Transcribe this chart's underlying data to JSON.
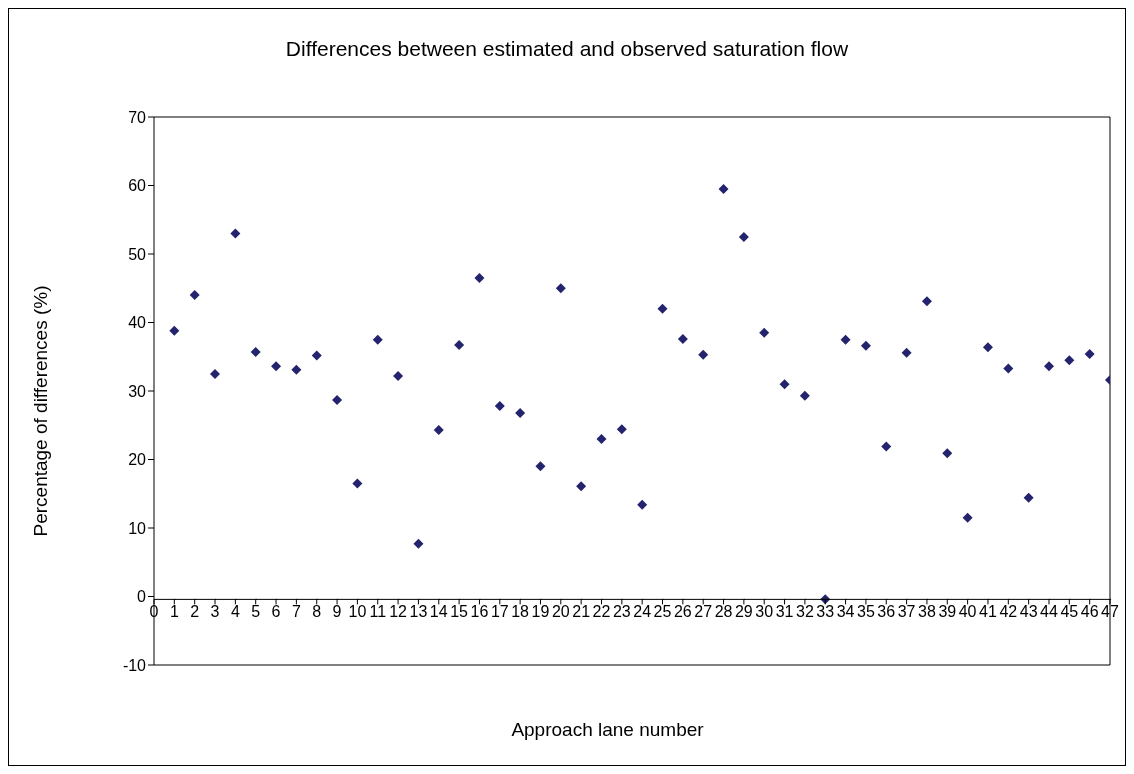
{
  "chart_data": {
    "type": "scatter",
    "title": "Differences between estimated and observed saturation flow",
    "xlabel": "Approach lane number",
    "ylabel": "Percentage of differences (%)",
    "x": [
      1,
      2,
      3,
      4,
      5,
      6,
      7,
      8,
      9,
      10,
      11,
      12,
      13,
      14,
      15,
      16,
      17,
      18,
      19,
      20,
      21,
      22,
      23,
      24,
      25,
      26,
      27,
      28,
      29,
      30,
      31,
      32,
      33,
      34,
      35,
      36,
      37,
      38,
      39,
      40,
      41,
      42,
      43,
      44,
      45,
      46,
      47
    ],
    "series": [
      {
        "color": "#23236e",
        "values": [
          38.8,
          44,
          32.5,
          53,
          35.7,
          33.6,
          33.1,
          35.2,
          28.7,
          16.5,
          37.5,
          32.2,
          7.7,
          24.3,
          36.7,
          46.5,
          27.8,
          26.8,
          19,
          45,
          16.1,
          23,
          24.4,
          13.4,
          42,
          37.6,
          35.3,
          59.5,
          52.5,
          38.5,
          31,
          29.3,
          -0.4,
          37.5,
          36.6,
          21.9,
          35.6,
          43.1,
          20.9,
          11.5,
          36.4,
          33.3,
          14.4,
          33.6,
          34.5,
          35.4,
          31.6
        ]
      }
    ],
    "xlim": [
      0,
      47
    ],
    "xticks": [
      0,
      1,
      2,
      3,
      4,
      5,
      6,
      7,
      8,
      9,
      10,
      11,
      12,
      13,
      14,
      15,
      16,
      17,
      18,
      19,
      20,
      21,
      22,
      23,
      24,
      25,
      26,
      27,
      28,
      29,
      30,
      31,
      32,
      33,
      34,
      35,
      36,
      37,
      38,
      39,
      40,
      41,
      42,
      43,
      44,
      45,
      46,
      47
    ],
    "ylim": [
      -10,
      70
    ],
    "yticks": [
      -10,
      0,
      10,
      20,
      30,
      40,
      50,
      60,
      70
    ],
    "grid": false,
    "marker": "diamond"
  }
}
